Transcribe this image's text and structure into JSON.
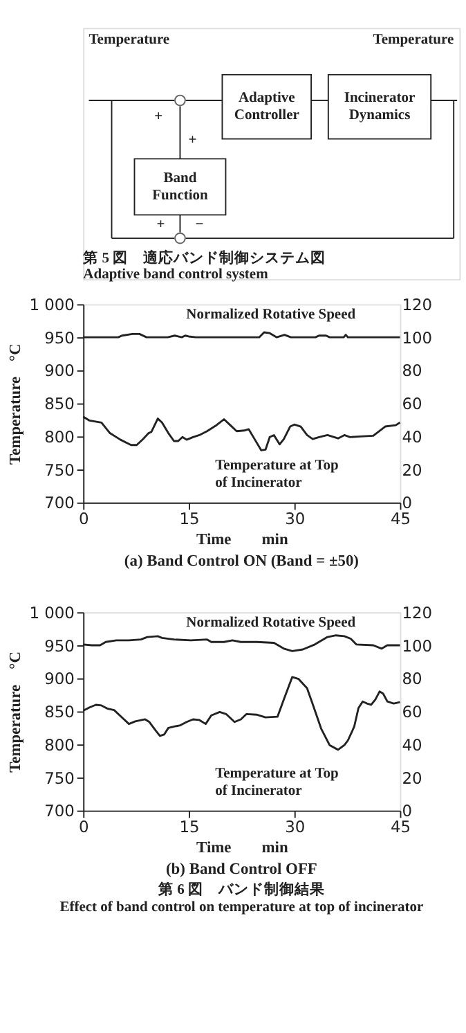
{
  "chart_data": [
    {
      "type": "other",
      "annotations": [
        "Temperature",
        "Temperature",
        "Adaptive Controller",
        "Incinerator Dynamics",
        "Band Function",
        "+",
        "+",
        "+",
        "−",
        "第 5 図　適応バンド制御システム図",
        "Adaptive band control system"
      ]
    },
    {
      "type": "line",
      "title": "(a)  Band Control ON  (Band = ±50)",
      "xlabel": "Time　　min",
      "ylabel": "Temperature　°C",
      "xlim": [
        0,
        45
      ],
      "xticks": [
        0,
        15,
        30,
        45
      ],
      "ylim": [
        700,
        1000
      ],
      "yticks": [
        700,
        750,
        800,
        850,
        900,
        950,
        {
          "value": 1000,
          "label": "1 000"
        }
      ],
      "y2lim": [
        0,
        120
      ],
      "y2ticks": [
        0,
        20,
        40,
        60,
        80,
        100,
        120
      ],
      "grid": false,
      "series": [
        {
          "name": "Normalized Rotative Speed",
          "color": "#222222",
          "axis": "y2",
          "x": [
            0,
            5,
            5.5,
            7,
            8,
            9,
            12,
            13,
            14,
            14.5,
            15,
            16,
            25,
            25.7,
            26.5,
            27.5,
            28.6,
            29.5,
            33,
            33.5,
            34.5,
            35,
            37,
            37.3,
            37.6,
            45
          ],
          "values": [
            100,
            100,
            101,
            102,
            102,
            100,
            100,
            101,
            100,
            101,
            100.5,
            100,
            100,
            103,
            102.5,
            100,
            101.5,
            100,
            100,
            101,
            101,
            100,
            100,
            101.5,
            100,
            100
          ]
        },
        {
          "name": "Temperature at Top of Incinerator",
          "color": "#222222",
          "x": [
            0,
            0.9,
            2.6,
            3.8,
            5.3,
            6.8,
            7.6,
            8.5,
            9.3,
            9.7,
            10.6,
            11.2,
            12.1,
            12.9,
            13.5,
            14.1,
            14.7,
            15.6,
            16.5,
            17.6,
            18.8,
            20,
            20.9,
            21.8,
            22.9,
            23.5,
            24.4,
            25.3,
            25.9,
            26.5,
            27.1,
            27.9,
            28.5,
            29.4,
            30,
            30.9,
            31.8,
            32.6,
            33.5,
            34.7,
            36.2,
            37.1,
            37.9,
            39.4,
            41.2,
            42.9,
            44.4,
            45
          ],
          "values": [
            830,
            824,
            821,
            805,
            795,
            787,
            787,
            796,
            805,
            807,
            827,
            821,
            805,
            793,
            793,
            799,
            795,
            799,
            802,
            808,
            816,
            826,
            817,
            808,
            809,
            811,
            795,
            779,
            780,
            799,
            802,
            788,
            796,
            815,
            818,
            815,
            802,
            796,
            799,
            802,
            797,
            802,
            799,
            800,
            801,
            815,
            817,
            821
          ]
        }
      ]
    },
    {
      "type": "line",
      "title": "(b)  Band Control OFF",
      "xlabel": "Time　　min",
      "ylabel": "Temperature　°C",
      "annotations": [
        "第 6 図　バンド制御結果",
        "Effect of band control on temperature at top of incinerator"
      ],
      "xlim": [
        0,
        45
      ],
      "xticks": [
        0,
        15,
        30,
        45
      ],
      "ylim": [
        700,
        1000
      ],
      "yticks": [
        700,
        750,
        800,
        850,
        900,
        950,
        {
          "value": 1000,
          "label": "1 000"
        }
      ],
      "y2lim": [
        0,
        120
      ],
      "y2ticks": [
        0,
        20,
        40,
        60,
        80,
        100,
        120
      ],
      "grid": false,
      "series": [
        {
          "name": "Normalized Rotative Speed",
          "color": "#222222",
          "axis": "y2",
          "x": [
            0,
            1.2,
            2.4,
            3.2,
            4.7,
            6.5,
            8.2,
            9.1,
            10.6,
            11.2,
            12.9,
            15.3,
            17.6,
            18.2,
            20,
            21.2,
            22.4,
            24.7,
            27.1,
            28.5,
            29.7,
            31.2,
            32.9,
            34.7,
            35.9,
            37.1,
            38,
            38.8,
            41.2,
            42.4,
            43.2,
            45
          ],
          "values": [
            100.5,
            100,
            100,
            102,
            103,
            103,
            103.5,
            105,
            105.5,
            104.5,
            103.5,
            103,
            103.5,
            102,
            102,
            103,
            102,
            102,
            101.5,
            98,
            96.5,
            97.5,
            100.5,
            105,
            106,
            105.5,
            104,
            100.5,
            100,
            98,
            100,
            100
          ]
        },
        {
          "name": "Temperature at Top of Incinerator",
          "color": "#222222",
          "x": [
            0,
            0.9,
            1.8,
            2.6,
            3.5,
            4.4,
            5.3,
            6.5,
            7.4,
            8.8,
            9.4,
            10.3,
            10.9,
            11.5,
            12.1,
            12.9,
            13.8,
            14.7,
            15.6,
            16.5,
            17.4,
            18.2,
            19.4,
            20.3,
            20.9,
            21.5,
            22.4,
            23.2,
            24.7,
            25.9,
            27.6,
            28.5,
            29.7,
            30.6,
            31.8,
            32.6,
            33.8,
            35,
            36.2,
            37.1,
            37.6,
            38.5,
            39.1,
            39.7,
            40.3,
            40.9,
            41.5,
            42.1,
            42.6,
            43.2,
            44.1,
            45
          ],
          "values": [
            851,
            856,
            860,
            859,
            854,
            852,
            843,
            831,
            835,
            838,
            834,
            821,
            813,
            815,
            825,
            827,
            829,
            834,
            838,
            837,
            831,
            844,
            849,
            846,
            840,
            834,
            838,
            846,
            845,
            841,
            842,
            868,
            902,
            899,
            885,
            861,
            824,
            799,
            792,
            799,
            806,
            827,
            855,
            865,
            862,
            860,
            868,
            880,
            877,
            865,
            862,
            864
          ]
        }
      ]
    }
  ]
}
